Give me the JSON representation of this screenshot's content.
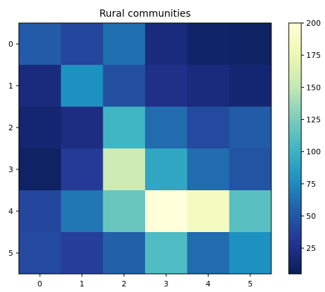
{
  "chart_data": {
    "type": "heatmap",
    "title": "Rural communities",
    "xlabel": "",
    "ylabel": "",
    "x_categories": [
      "0",
      "1",
      "2",
      "3",
      "4",
      "5"
    ],
    "y_categories": [
      "0",
      "1",
      "2",
      "3",
      "4",
      "5"
    ],
    "values": [
      [
        52,
        40,
        62,
        20,
        12,
        10
      ],
      [
        20,
        78,
        45,
        25,
        20,
        15
      ],
      [
        15,
        22,
        102,
        60,
        42,
        52
      ],
      [
        10,
        32,
        155,
        92,
        60,
        48
      ],
      [
        40,
        65,
        118,
        200,
        185,
        112
      ],
      [
        42,
        35,
        55,
        108,
        60,
        78
      ]
    ],
    "colorbar": {
      "min": 5,
      "max": 200,
      "ticks": [
        25,
        50,
        75,
        100,
        125,
        150,
        175,
        200
      ],
      "colormap": "YlGnBu"
    },
    "grid": false
  }
}
